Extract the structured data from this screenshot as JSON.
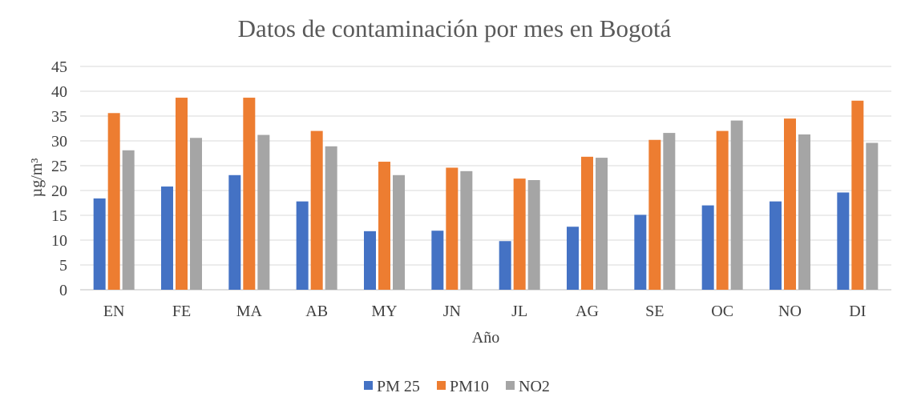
{
  "chart_data": {
    "type": "bar",
    "title": "Datos de contaminación por mes en Bogotá",
    "xlabel": "Año",
    "ylabel": "µg/m³",
    "categories": [
      "EN",
      "FE",
      "MA",
      "AB",
      "MY",
      "JN",
      "JL",
      "AG",
      "SE",
      "OC",
      "NO",
      "DI"
    ],
    "ylim": [
      0,
      45
    ],
    "yticks": [
      0,
      5,
      10,
      15,
      20,
      25,
      30,
      35,
      40,
      45
    ],
    "grid": true,
    "legend_position": "bottom",
    "series": [
      {
        "name": "PM 25",
        "color": "#4472C4",
        "values": [
          18.4,
          20.8,
          23.1,
          17.8,
          11.8,
          11.9,
          9.8,
          12.7,
          15.1,
          17.0,
          17.8,
          19.6
        ]
      },
      {
        "name": "PM10",
        "color": "#ED7D31",
        "values": [
          35.6,
          38.7,
          38.7,
          32.0,
          25.8,
          24.6,
          22.4,
          26.8,
          30.2,
          32.0,
          34.5,
          38.1
        ]
      },
      {
        "name": "NO2",
        "color": "#A5A5A5",
        "values": [
          28.1,
          30.6,
          31.2,
          28.9,
          23.1,
          23.9,
          22.1,
          26.6,
          31.6,
          34.1,
          31.3,
          29.6
        ]
      }
    ]
  }
}
